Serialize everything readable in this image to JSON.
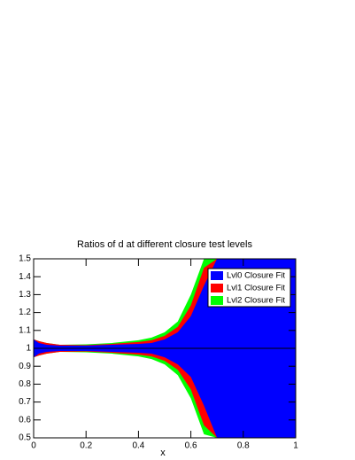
{
  "chart_data": {
    "type": "band",
    "title": "Ratios of d at different closure test levels",
    "x_label": "x",
    "x": [
      0,
      0.02,
      0.05,
      0.1,
      0.2,
      0.3,
      0.4,
      0.45,
      0.5,
      0.55,
      0.6,
      0.65,
      0.7,
      0.75,
      0.8,
      0.9,
      1.0
    ],
    "series": [
      {
        "name": "Lvl2 Closure Fit",
        "color": "#00ff00",
        "upper": [
          1.05,
          1.04,
          1.03,
          1.02,
          1.022,
          1.03,
          1.045,
          1.06,
          1.09,
          1.15,
          1.3,
          1.5,
          1.5,
          1.5,
          1.5,
          1.5,
          1.5
        ],
        "lower": [
          0.95,
          0.96,
          0.97,
          0.98,
          0.978,
          0.97,
          0.955,
          0.94,
          0.91,
          0.85,
          0.72,
          0.52,
          0.5,
          0.5,
          0.5,
          0.5,
          0.5
        ]
      },
      {
        "name": "Lvl1 Closure Fit",
        "color": "#ff0000",
        "upper": [
          1.05,
          1.04,
          1.03,
          1.02,
          1.018,
          1.025,
          1.035,
          1.045,
          1.07,
          1.12,
          1.24,
          1.45,
          1.5,
          1.5,
          1.5,
          1.5,
          1.5
        ],
        "lower": [
          0.95,
          0.96,
          0.97,
          0.98,
          0.982,
          0.975,
          0.965,
          0.955,
          0.93,
          0.88,
          0.77,
          0.57,
          0.5,
          0.5,
          0.5,
          0.5,
          0.5
        ]
      },
      {
        "name": "Lvl0 Closure Fit",
        "color": "#0000ff",
        "upper": [
          1.05,
          1.03,
          1.02,
          1.015,
          1.015,
          1.02,
          1.025,
          1.03,
          1.05,
          1.09,
          1.18,
          1.35,
          1.5,
          1.5,
          1.5,
          1.5,
          1.5
        ],
        "lower": [
          0.95,
          0.97,
          0.98,
          0.985,
          0.985,
          0.98,
          0.975,
          0.97,
          0.95,
          0.91,
          0.84,
          0.68,
          0.5,
          0.5,
          0.5,
          0.5,
          0.5
        ]
      }
    ],
    "legend_order": [
      2,
      1,
      0
    ],
    "hline": 1,
    "xlim": [
      0,
      1
    ],
    "xticks": [
      0,
      0.2,
      0.4,
      0.6,
      0.8,
      1
    ],
    "ylim": [
      0.5,
      1.5
    ],
    "yticks": [
      0.5,
      0.6,
      0.7,
      0.8,
      0.9,
      1,
      1.1,
      1.2,
      1.3,
      1.4,
      1.5
    ]
  }
}
